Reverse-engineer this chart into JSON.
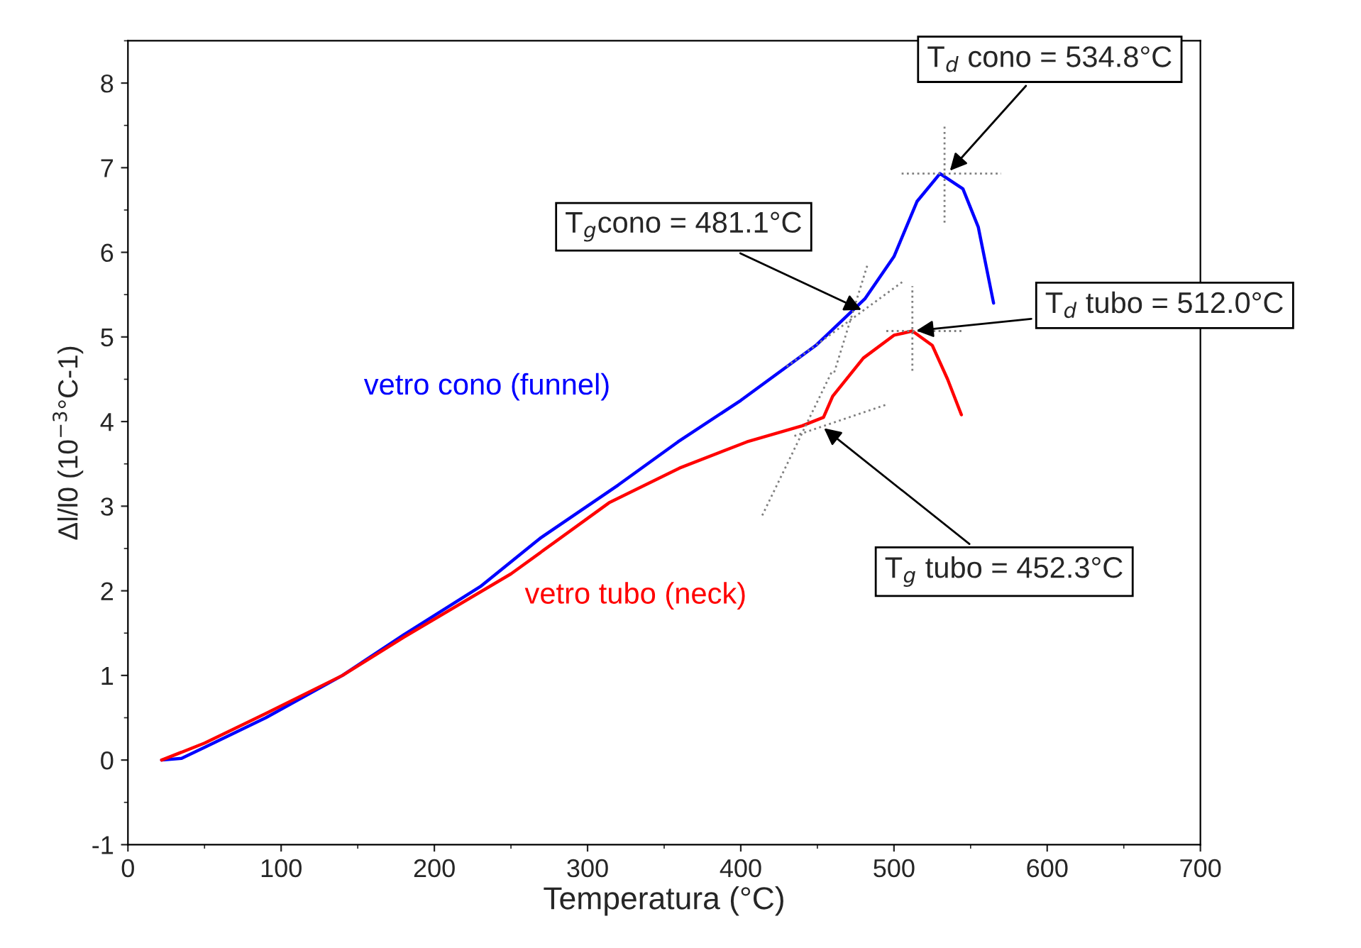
{
  "chart_data": {
    "type": "line",
    "xlabel": "Temperatura (°C)",
    "ylabel": "Δl/l0 (10$^{−3}$°C-1)",
    "xlim": [
      0,
      700
    ],
    "ylim": [
      -1,
      8.5
    ],
    "xticks": [
      0,
      100,
      200,
      300,
      400,
      500,
      600,
      700
    ],
    "yticks": [
      -1,
      0,
      1,
      2,
      3,
      4,
      5,
      6,
      7,
      8
    ],
    "grid": false,
    "legend": false,
    "series": [
      {
        "name": "vetro cono (funnel)",
        "color": "#0000ff",
        "line_style": "solid",
        "x": [
          22,
          35,
          50,
          90,
          140,
          180,
          230,
          269,
          320,
          359,
          400,
          449,
          481,
          500,
          515,
          530,
          545,
          555,
          565
        ],
        "values": [
          0,
          0.02,
          0.15,
          0.5,
          1.0,
          1.48,
          2.05,
          2.62,
          3.25,
          3.76,
          4.25,
          4.9,
          5.45,
          5.95,
          6.6,
          6.93,
          6.75,
          6.3,
          5.4
        ]
      },
      {
        "name": "vetro tubo (neck)",
        "color": "#ff0000",
        "line_style": "solid",
        "x": [
          22,
          50,
          90,
          140,
          180,
          250,
          314,
          360,
          404,
          440,
          454,
          460,
          480,
          500,
          512,
          525,
          535,
          544
        ],
        "values": [
          0,
          0.2,
          0.55,
          1.0,
          1.45,
          2.2,
          3.04,
          3.45,
          3.76,
          3.95,
          4.05,
          4.3,
          4.75,
          5.02,
          5.07,
          4.9,
          4.5,
          4.08
        ]
      },
      {
        "color": "#808080",
        "line_style": "dotted",
        "x": [
          461,
          483
        ],
        "values": [
          4.58,
          5.87
        ]
      },
      {
        "color": "#808080",
        "line_style": "dotted",
        "x": [
          430,
          507
        ],
        "values": [
          4.65,
          5.67
        ]
      },
      {
        "color": "#808080",
        "line_style": "dotted",
        "x": [
          533,
          533
        ],
        "values": [
          6.35,
          7.5
        ]
      },
      {
        "color": "#808080",
        "line_style": "dotted",
        "x": [
          505,
          570
        ],
        "values": [
          6.93,
          6.93
        ]
      },
      {
        "color": "#808080",
        "line_style": "dotted",
        "x": [
          512,
          512
        ],
        "values": [
          4.6,
          5.6
        ]
      },
      {
        "color": "#808080",
        "line_style": "dotted",
        "x": [
          495,
          545
        ],
        "values": [
          5.07,
          5.07
        ]
      },
      {
        "color": "#808080",
        "line_style": "dotted",
        "x": [
          414,
          460
        ],
        "values": [
          2.89,
          4.61
        ]
      },
      {
        "color": "#808080",
        "line_style": "dotted",
        "x": [
          435,
          495
        ],
        "values": [
          3.83,
          4.2
        ]
      }
    ],
    "annotations": [
      {
        "text": "T$_{d}$ cono = 534.8°C",
        "x": 534.8,
        "y": 6.93
      },
      {
        "text": "T$_{g}$cono = 481.1°C",
        "x": 481.1,
        "y": 5.3
      },
      {
        "text": "T$_{d}$ tubo = 512.0°C",
        "x": 512.0,
        "y": 5.07
      },
      {
        "text": "T$_{g}$ tubo = 452.3°C",
        "x": 452.3,
        "y": 3.95
      }
    ]
  }
}
